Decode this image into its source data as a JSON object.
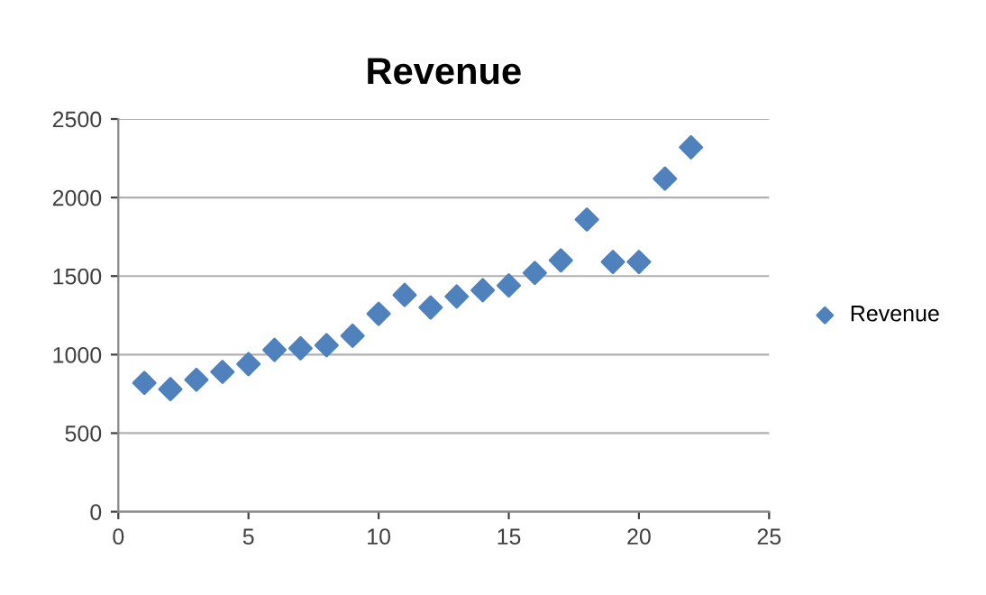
{
  "chart_data": {
    "type": "scatter",
    "title": "Revenue",
    "x": [
      1,
      2,
      3,
      4,
      5,
      6,
      7,
      8,
      9,
      10,
      11,
      12,
      13,
      14,
      15,
      16,
      17,
      18,
      19,
      20,
      21,
      22
    ],
    "series": [
      {
        "name": "Revenue",
        "color": "#4f81bd",
        "values": [
          820,
          780,
          840,
          890,
          940,
          1030,
          1040,
          1060,
          1120,
          1260,
          1380,
          1300,
          1370,
          1410,
          1440,
          1520,
          1600,
          1860,
          1590,
          1590,
          2120,
          2320
        ]
      }
    ],
    "xlim": [
      0,
      25
    ],
    "xticks": [
      0,
      5,
      10,
      15,
      20,
      25
    ],
    "ylim": [
      0,
      2500
    ],
    "yticks": [
      0,
      500,
      1000,
      1500,
      2000,
      2500
    ],
    "grid": "y",
    "legend": "right",
    "marker": "diamond"
  }
}
